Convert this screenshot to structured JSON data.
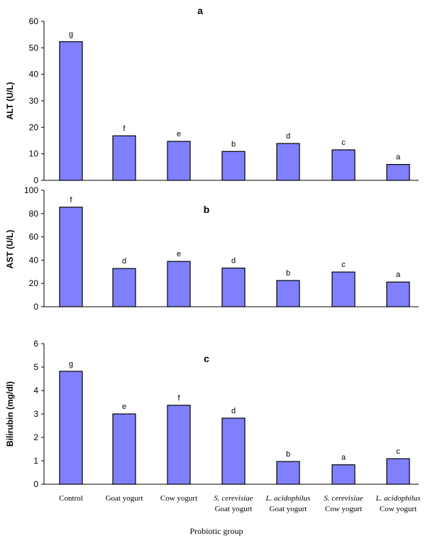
{
  "chart_data": [
    {
      "type": "bar",
      "title": "a",
      "ylabel": "ALT (U/L)",
      "ylim": [
        0,
        60
      ],
      "yticks": [
        0,
        10,
        20,
        30,
        40,
        50,
        60
      ],
      "values": [
        52.3,
        16.8,
        14.7,
        10.9,
        13.9,
        11.5,
        6.0
      ],
      "labels": [
        "g",
        "f",
        "e",
        "b",
        "d",
        "c",
        "a"
      ],
      "bar_color": "#8080ff"
    },
    {
      "type": "bar",
      "title": "b",
      "ylabel": "AST (U/L)",
      "ylim": [
        0,
        100
      ],
      "yticks": [
        0,
        20,
        40,
        60,
        80,
        100
      ],
      "values": [
        85.5,
        32.8,
        38.9,
        33.2,
        22.5,
        29.8,
        21.2
      ],
      "labels": [
        "f",
        "d",
        "e",
        "d",
        "b",
        "c",
        "a"
      ],
      "bar_color": "#8080ff"
    },
    {
      "type": "bar",
      "title": "c",
      "ylabel": "Bilirubin (mg/dl)",
      "ylim": [
        0,
        6
      ],
      "yticks": [
        0,
        1,
        2,
        3,
        4,
        5,
        6
      ],
      "values": [
        4.82,
        3.0,
        3.37,
        2.82,
        0.97,
        0.83,
        1.09
      ],
      "labels": [
        "g",
        "e",
        "f",
        "d",
        "b",
        "a",
        "c"
      ],
      "bar_color": "#8080ff"
    }
  ],
  "categories": [
    {
      "line1": "Control",
      "line1_italic": false,
      "line2": ""
    },
    {
      "line1": "Goat yogurt",
      "line1_italic": false,
      "line2": ""
    },
    {
      "line1": "Cow yogurt",
      "line1_italic": false,
      "line2": ""
    },
    {
      "line1": "S. cerevisiae",
      "line1_italic": true,
      "line2": "Goat yogurt"
    },
    {
      "line1": "L. acidophilus",
      "line1_italic": true,
      "line2": "Goat yogurt"
    },
    {
      "line1": "S. cerevisiae",
      "line1_italic": true,
      "line2": "Cow yogurt"
    },
    {
      "line1": "L. acidophilus",
      "line1_italic": true,
      "line2": "Cow yogurt"
    }
  ],
  "xlabel": "Probiotic group"
}
